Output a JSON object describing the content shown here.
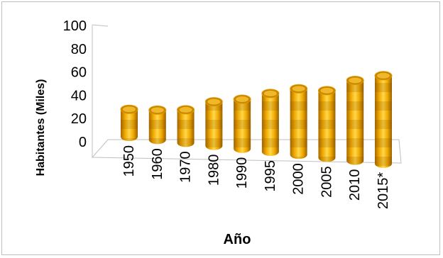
{
  "chart_data": {
    "type": "bar",
    "style": "3d-cylinder",
    "categories": [
      "1950",
      "1960",
      "1970",
      "1980",
      "1990",
      "1995",
      "2000",
      "2005",
      "2010",
      "2015*"
    ],
    "values": [
      25,
      27,
      30,
      40,
      45,
      53,
      60,
      61,
      73,
      80
    ],
    "xlabel": "Año",
    "ylabel": "Habitantes (Miles)",
    "ylim": [
      0,
      100
    ],
    "yticks": [
      "0",
      "20",
      "40",
      "60",
      "80",
      "100"
    ],
    "grid": false,
    "legend": "none",
    "colors": {
      "bar_light": "#ffd84a",
      "bar_mid": "#f0a800",
      "bar_dark": "#a86a00",
      "bar_top": "#c88400",
      "floor": "#ffffff",
      "axis": "#bfbfbf"
    }
  }
}
